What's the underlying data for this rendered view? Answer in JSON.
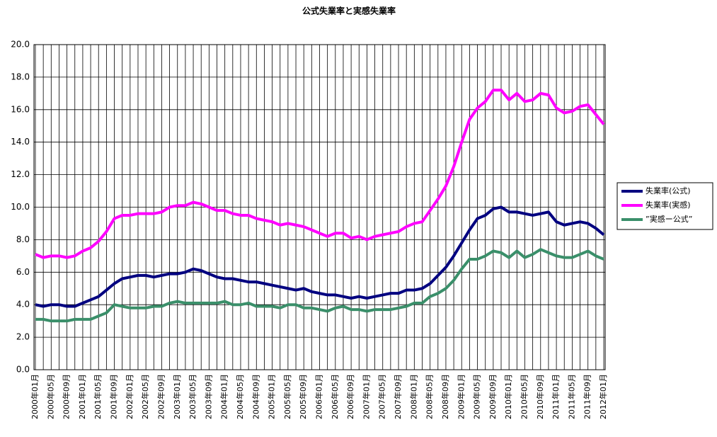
{
  "chart_data": {
    "type": "line",
    "title": "公式失業率と実感失業率",
    "categories": [
      "2000年01月",
      null,
      "2000年05月",
      null,
      "2000年09月",
      null,
      "2001年01月",
      null,
      "2001年05月",
      null,
      "2001年09月",
      null,
      "2002年01月",
      null,
      "2002年05月",
      null,
      "2002年09月",
      null,
      "2003年01月",
      null,
      "2003年05月",
      null,
      "2003年09月",
      null,
      "2004年01月",
      null,
      "2004年05月",
      null,
      "2004年09月",
      null,
      "2005年01月",
      null,
      "2005年05月",
      null,
      "2005年09月",
      null,
      "2006年01月",
      null,
      "2006年05月",
      null,
      "2006年09月",
      null,
      "2007年01月",
      null,
      "2007年05月",
      null,
      "2007年09月",
      null,
      "2008年01月",
      null,
      "2008年05月",
      null,
      "2008年09月",
      null,
      "2009年01月",
      null,
      "2009年05月",
      null,
      "2009年09月",
      null,
      "2010年01月",
      null,
      "2010年05月",
      null,
      "2010年09月",
      null,
      "2011年01月",
      null,
      "2011年05月",
      null,
      "2011年09月",
      null,
      "2012年01月"
    ],
    "series": [
      {
        "name": "失業率(公式)",
        "color": "#000080",
        "values": [
          4.0,
          3.9,
          4.0,
          4.0,
          3.9,
          3.9,
          4.1,
          4.3,
          4.5,
          4.9,
          5.3,
          5.6,
          5.7,
          5.8,
          5.8,
          5.7,
          5.8,
          5.9,
          5.9,
          6.0,
          6.2,
          6.1,
          5.9,
          5.7,
          5.6,
          5.6,
          5.5,
          5.4,
          5.4,
          5.3,
          5.2,
          5.1,
          5.0,
          4.9,
          5.0,
          4.8,
          4.7,
          4.6,
          4.6,
          4.5,
          4.4,
          4.5,
          4.4,
          4.5,
          4.6,
          4.7,
          4.7,
          4.9,
          4.9,
          5.0,
          5.3,
          5.8,
          6.3,
          7.0,
          7.8,
          8.6,
          9.3,
          9.5,
          9.9,
          10.0,
          9.7,
          9.7,
          9.6,
          9.5,
          9.6,
          9.7,
          9.1,
          8.9,
          9.0,
          9.1,
          9.0,
          8.7,
          8.3
        ]
      },
      {
        "name": "失業率(実感)",
        "color": "#ff00ff",
        "values": [
          7.1,
          6.9,
          7.0,
          7.0,
          6.9,
          7.0,
          7.3,
          7.5,
          7.9,
          8.5,
          9.3,
          9.5,
          9.5,
          9.6,
          9.6,
          9.6,
          9.7,
          10.0,
          10.1,
          10.1,
          10.3,
          10.2,
          10.0,
          9.8,
          9.8,
          9.6,
          9.5,
          9.5,
          9.3,
          9.2,
          9.1,
          8.9,
          9.0,
          8.9,
          8.8,
          8.6,
          8.4,
          8.2,
          8.4,
          8.4,
          8.1,
          8.2,
          8.0,
          8.2,
          8.3,
          8.4,
          8.5,
          8.8,
          9.0,
          9.1,
          9.8,
          10.5,
          11.3,
          12.5,
          14.0,
          15.4,
          16.1,
          16.5,
          17.2,
          17.2,
          16.6,
          17.0,
          16.5,
          16.6,
          17.0,
          16.9,
          16.1,
          15.8,
          15.9,
          16.2,
          16.3,
          15.7,
          15.1
        ]
      },
      {
        "name": "”実感ー公式”",
        "color": "#3a8f6a",
        "values": [
          3.1,
          3.1,
          3.0,
          3.0,
          3.0,
          3.1,
          3.1,
          3.1,
          3.3,
          3.5,
          4.0,
          3.9,
          3.8,
          3.8,
          3.8,
          3.9,
          3.9,
          4.1,
          4.2,
          4.1,
          4.1,
          4.1,
          4.1,
          4.1,
          4.2,
          4.0,
          4.0,
          4.1,
          3.9,
          3.9,
          3.9,
          3.8,
          4.0,
          4.0,
          3.8,
          3.8,
          3.7,
          3.6,
          3.8,
          3.9,
          3.7,
          3.7,
          3.6,
          3.7,
          3.7,
          3.7,
          3.8,
          3.9,
          4.1,
          4.1,
          4.5,
          4.7,
          5.0,
          5.5,
          6.2,
          6.8,
          6.8,
          7.0,
          7.3,
          7.2,
          6.9,
          7.3,
          6.9,
          7.1,
          7.4,
          7.2,
          7.0,
          6.9,
          6.9,
          7.1,
          7.3,
          7.0,
          6.8
        ]
      }
    ],
    "ylim": [
      0,
      20
    ],
    "yticks": [
      {
        "value": 0,
        "label": "0.0"
      },
      {
        "value": 2,
        "label": "2.0"
      },
      {
        "value": 4,
        "label": "4.0"
      },
      {
        "value": 6,
        "label": "6.0"
      },
      {
        "value": 8,
        "label": "8.0"
      },
      {
        "value": 10,
        "label": "10.0"
      },
      {
        "value": 12,
        "label": "12.0"
      },
      {
        "value": 14,
        "label": "14.0"
      },
      {
        "value": 16,
        "label": "16.0"
      },
      {
        "value": 18,
        "label": "18.0"
      },
      {
        "value": 20,
        "label": "20.0"
      }
    ],
    "grid": true,
    "legend": "right"
  }
}
